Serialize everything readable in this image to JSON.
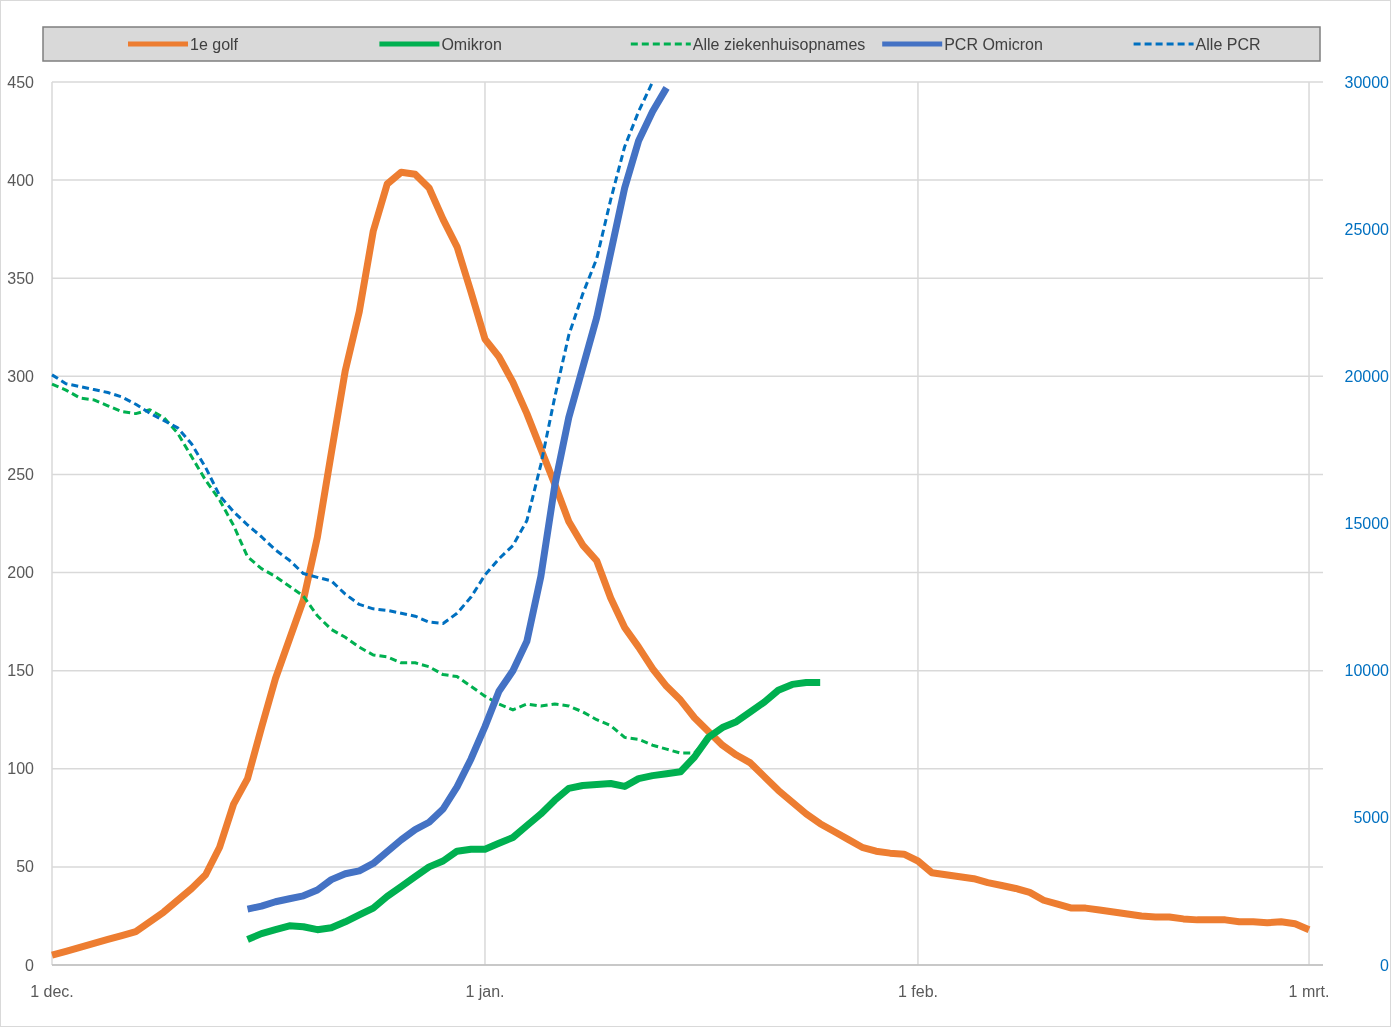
{
  "chart_data": {
    "type": "line",
    "categories": [
      "1 dec.",
      null,
      null,
      null,
      null,
      null,
      null,
      null,
      null,
      null,
      null,
      null,
      null,
      null,
      null,
      null,
      null,
      null,
      null,
      null,
      null,
      null,
      null,
      null,
      null,
      null,
      null,
      null,
      null,
      null,
      null,
      "1 jan.",
      null,
      null,
      null,
      null,
      null,
      null,
      null,
      null,
      null,
      null,
      null,
      null,
      null,
      null,
      null,
      null,
      null,
      null,
      null,
      null,
      null,
      null,
      null,
      null,
      null,
      null,
      null,
      null,
      null,
      null,
      "1 feb.",
      null,
      null,
      null,
      null,
      null,
      null,
      null,
      null,
      null,
      null,
      null,
      null,
      null,
      null,
      null,
      null,
      null,
      null,
      null,
      null,
      null,
      null,
      null,
      null,
      null,
      null,
      null,
      "1 mrt."
    ],
    "ylim": [
      0,
      450
    ],
    "yticks": [
      0,
      50,
      100,
      150,
      200,
      250,
      300,
      350,
      400,
      450
    ],
    "y2lim": [
      0,
      30000
    ],
    "y2ticks": [
      0,
      5000,
      10000,
      15000,
      20000,
      25000,
      30000
    ],
    "grid": true,
    "legend": "top",
    "series": [
      {
        "name": "1e golf",
        "color": "#ed7d31",
        "line_style": "solid",
        "values": [
          5,
          7,
          9,
          11,
          13,
          15,
          17,
          22,
          27,
          33,
          39,
          46,
          60,
          82,
          95,
          121,
          146,
          166,
          186,
          218,
          261,
          303,
          333,
          374,
          398,
          404,
          403,
          396,
          380,
          366,
          343,
          319,
          310,
          297,
          281,
          263,
          245,
          226,
          214,
          206,
          187,
          172,
          162,
          151,
          142,
          135,
          126,
          119,
          112,
          107,
          103,
          96,
          89,
          83,
          77,
          72,
          68,
          64,
          60,
          58,
          57,
          56.5,
          53,
          47,
          46,
          45,
          44,
          42,
          40.5,
          39,
          37,
          33,
          31,
          29,
          29,
          28,
          27,
          26,
          25,
          24.5,
          24.5,
          23.5,
          23,
          23,
          23,
          22,
          22,
          21.5,
          22,
          21,
          18
        ]
      },
      {
        "name": "Omikron",
        "color": "#00b050",
        "line_style": "solid",
        "values": [
          null,
          null,
          null,
          null,
          null,
          null,
          null,
          null,
          null,
          null,
          null,
          null,
          null,
          null,
          13,
          16,
          18,
          20,
          19.5,
          18,
          19,
          22,
          25.5,
          29,
          35,
          40,
          45,
          50,
          53,
          58,
          59,
          59,
          62,
          65,
          71,
          77,
          84,
          90,
          91.5,
          92,
          92.5,
          91,
          95,
          96.5,
          97.5,
          98.5,
          106,
          116,
          121,
          124,
          129,
          134,
          140,
          143,
          144,
          144,
          null,
          null,
          null,
          null,
          null,
          null,
          null,
          null,
          null,
          null,
          null,
          null,
          null,
          null,
          null,
          null,
          null,
          null,
          null,
          null,
          null,
          null,
          null,
          null,
          null,
          null,
          null,
          null,
          null,
          null,
          null,
          null,
          null,
          null,
          null
        ]
      },
      {
        "name": "Alle ziekenhuisopnames",
        "color": "#00b050",
        "line_style": "dashed",
        "values": [
          296,
          293,
          289,
          288,
          285,
          282,
          281,
          283,
          279,
          271,
          259,
          247,
          237,
          224,
          208,
          202,
          198,
          193,
          188,
          178,
          171,
          167,
          162,
          158,
          157,
          154,
          154,
          152,
          148,
          147,
          142,
          137,
          133,
          130,
          133,
          132,
          133,
          132,
          129,
          125,
          122,
          116,
          115,
          112,
          110,
          108,
          108,
          116,
          121,
          125,
          null,
          null,
          null,
          null,
          null,
          null,
          null,
          null,
          null,
          null,
          null,
          null,
          null,
          null,
          null,
          null,
          null,
          null,
          null,
          null,
          null,
          null,
          null,
          null,
          null,
          null,
          null,
          null,
          null,
          null,
          null,
          null,
          null,
          null,
          null,
          null,
          null,
          null,
          null,
          null,
          null
        ]
      },
      {
        "name": "PCR Omicron",
        "color": "#4472c4",
        "line_style": "solid",
        "axis": "y2",
        "values": [
          null,
          null,
          null,
          null,
          null,
          null,
          null,
          null,
          null,
          null,
          null,
          null,
          null,
          null,
          1900,
          2000,
          2150,
          2250,
          2350,
          2550,
          2900,
          3100,
          3200,
          3450,
          3850,
          4250,
          4600,
          4850,
          5300,
          6050,
          7000,
          8100,
          9300,
          10000,
          11000,
          13200,
          16300,
          18600,
          20300,
          22000,
          24200,
          26400,
          28000,
          29000,
          29800,
          null,
          null,
          null,
          null,
          null,
          null,
          null,
          null,
          null,
          null,
          null,
          null,
          null,
          null,
          null,
          null,
          null,
          null,
          null,
          null,
          null,
          null,
          null,
          null,
          null,
          null,
          null,
          null,
          null,
          null,
          null,
          null,
          null,
          null,
          null,
          null,
          null,
          null,
          null,
          null,
          null,
          null,
          null,
          null,
          null,
          null
        ]
      },
      {
        "name": "Alle PCR",
        "color": "#0070c0",
        "line_style": "dashed",
        "axis": "y2",
        "values": [
          20050,
          19750,
          19650,
          19550,
          19450,
          19300,
          19050,
          18750,
          18500,
          18250,
          17700,
          16900,
          15950,
          15400,
          14950,
          14550,
          14100,
          13750,
          13300,
          13170,
          13050,
          12600,
          12250,
          12100,
          12050,
          11950,
          11850,
          11650,
          11600,
          11950,
          12500,
          13250,
          13800,
          14250,
          15100,
          17000,
          19300,
          21400,
          22800,
          24000,
          26000,
          27800,
          29000,
          30000,
          null,
          null,
          null,
          null,
          null,
          null,
          null,
          null,
          null,
          null,
          null,
          null,
          null,
          null,
          null,
          null,
          null,
          null,
          null,
          null,
          null,
          null,
          null,
          null,
          null,
          null,
          null,
          null,
          null,
          null,
          null,
          null,
          null,
          null,
          null,
          null,
          null,
          null,
          null,
          null,
          null,
          null,
          null,
          null,
          null,
          null,
          null
        ]
      }
    ]
  }
}
